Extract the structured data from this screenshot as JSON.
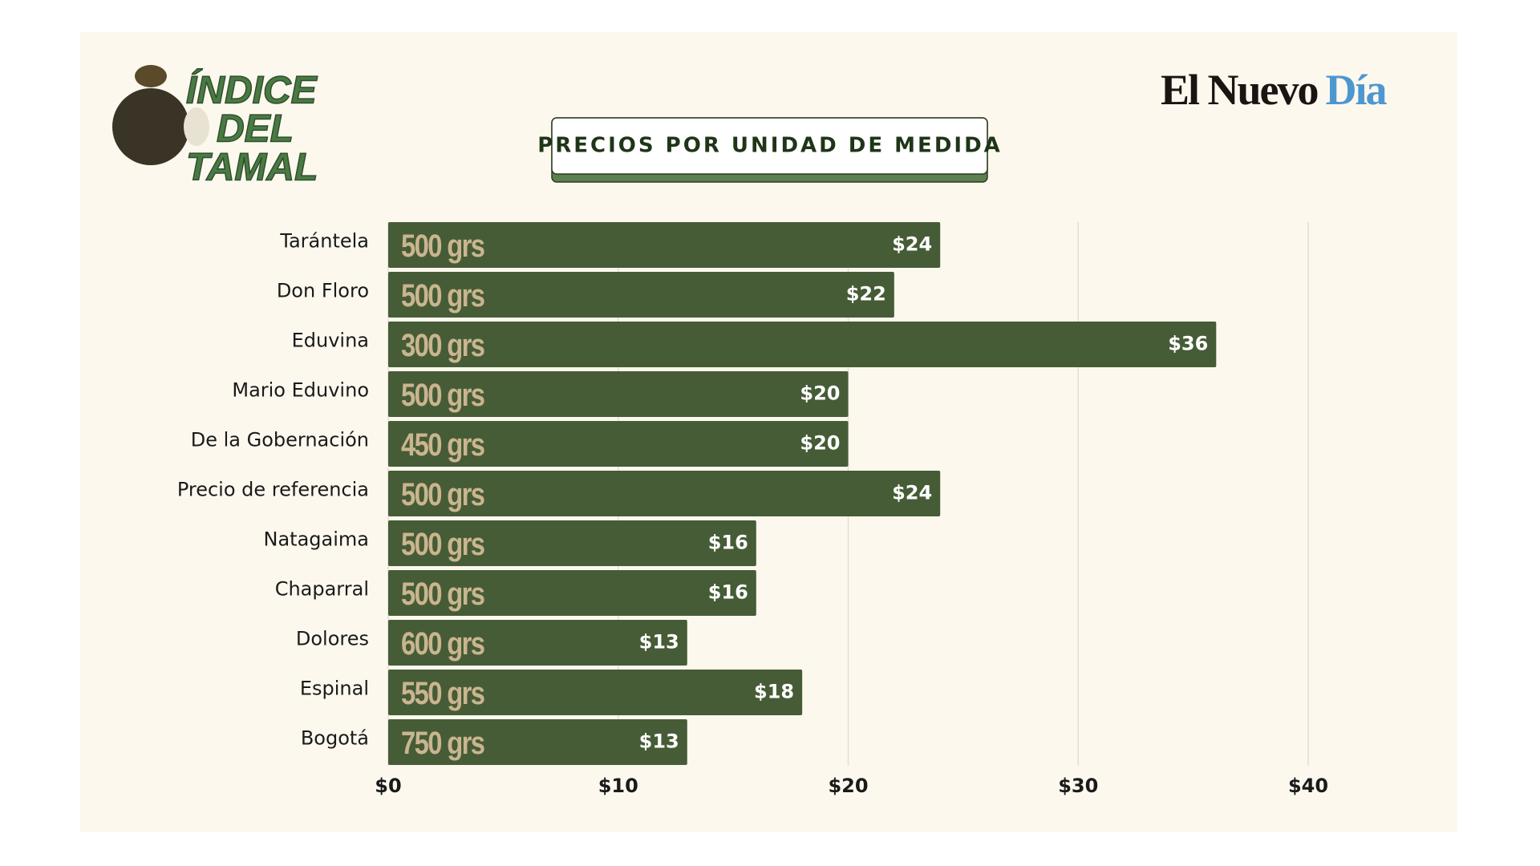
{
  "header": {
    "logo": [
      "ÍNDICE",
      "DEL",
      "TAMAL"
    ],
    "brand": "El Nuevo",
    "brand_accent": "Día"
  },
  "chart_data": {
    "type": "bar",
    "orientation": "horizontal",
    "title": "PRECIOS POR UNIDAD DE MEDIDA",
    "categories": [
      "Tarántela",
      "Don Floro",
      "Eduvina",
      "Mario Eduvino",
      "De la Gobernación",
      "Precio de referencia",
      "Natagaima",
      "Chaparral",
      "Dolores",
      "Espinal",
      "Bogotá"
    ],
    "values": [
      24,
      22,
      36,
      20,
      20,
      24,
      16,
      16,
      13,
      18,
      13
    ],
    "value_labels": [
      "$24",
      "$22",
      "$36",
      "$20",
      "$20",
      "$24",
      "$16",
      "$16",
      "$13",
      "$18",
      "$13"
    ],
    "bar_labels": [
      "500 grs",
      "500 grs",
      "300 grs",
      "500 grs",
      "450 grs",
      "500 grs",
      "500 grs",
      "500 grs",
      "600 grs",
      "550 grs",
      "750 grs"
    ],
    "color": "#465c36",
    "xlim": [
      0,
      40
    ],
    "xticks": [
      {
        "value": 0,
        "label": "$0"
      },
      {
        "value": 10,
        "label": "$10"
      },
      {
        "value": 20,
        "label": "$20"
      },
      {
        "value": 30,
        "label": "$30"
      },
      {
        "value": 40,
        "label": "$40"
      }
    ],
    "grid": true
  }
}
